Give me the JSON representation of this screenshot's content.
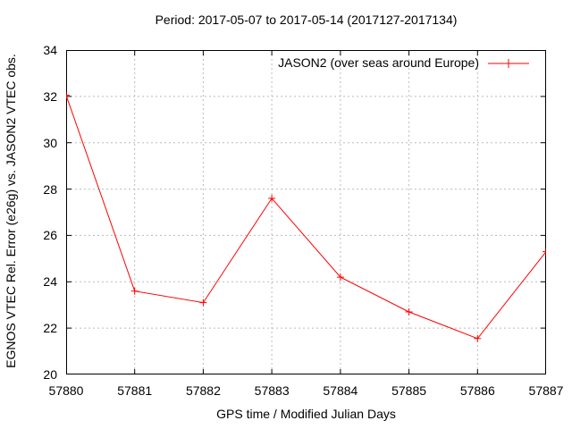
{
  "title": "Period: 2017-05-07 to 2017-05-14 (2017127-2017134)",
  "colors": {
    "series": "#ff0000",
    "grid": "#bbbbbb",
    "border": "#000000",
    "text": "#000000",
    "background": "#ffffff"
  },
  "chart_data": {
    "type": "line",
    "title": "Period: 2017-05-07 to 2017-05-14 (2017127-2017134)",
    "xlabel": "GPS time / Modified Julian Days",
    "ylabel": "EGNOS VTEC Rel. Error (e26g) vs. JASON2 VTEC obs.",
    "xlim": [
      57880,
      57887
    ],
    "ylim": [
      20,
      34
    ],
    "x_ticks": [
      57880,
      57881,
      57882,
      57883,
      57884,
      57885,
      57886,
      57887
    ],
    "y_ticks": [
      20,
      22,
      24,
      26,
      28,
      30,
      32,
      34
    ],
    "grid": true,
    "grid_style": "dashed",
    "legend_position": "top-right-inside",
    "series": [
      {
        "name": "JASON2 (over seas around Europe)",
        "color": "#ff0000",
        "marker": "plus",
        "x": [
          57880,
          57881,
          57882,
          57883,
          57884,
          57885,
          57886,
          57887
        ],
        "y": [
          32.05,
          23.6,
          23.1,
          27.6,
          24.2,
          22.7,
          21.55,
          25.3
        ]
      }
    ]
  }
}
